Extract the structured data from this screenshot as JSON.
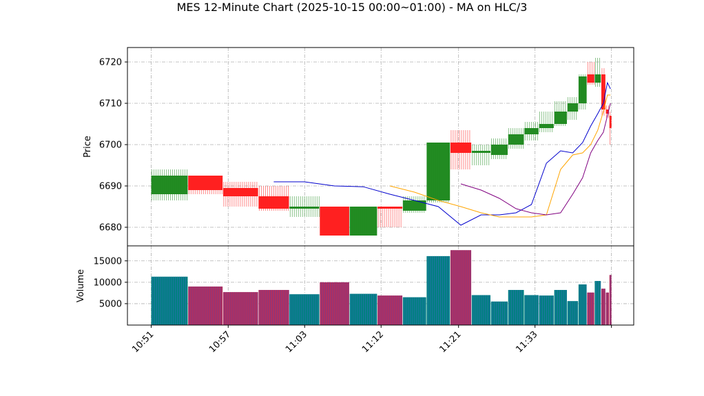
{
  "chart_data": {
    "type": "candlestick",
    "title": "MES 12-Minute Chart (2025-10-15 00:00~01:00) - MA on HLC/3",
    "price_panel": {
      "ylabel": "Price",
      "ylim": [
        6675.5,
        6723.5
      ],
      "yticks": [
        6680,
        6690,
        6700,
        6710,
        6720
      ],
      "grid": true
    },
    "volume_panel": {
      "ylabel": "Volume",
      "ylim": [
        0,
        18500
      ],
      "yticks": [
        5000,
        10000,
        15000
      ],
      "grid": true
    },
    "xlabels": [
      "10:51",
      "10:57",
      "11:03",
      "11:12",
      "11:21",
      "11:33"
    ],
    "colors": {
      "up": "#228b22",
      "down": "#ff2020",
      "ma_fast": "#0000cd",
      "ma_mid": "#ffa500",
      "ma_slow": "#800080",
      "volume_up": "#008080",
      "volume_down": "#b03060"
    },
    "candles": [
      {
        "open": 6688.0,
        "high": 6694.0,
        "low": 6686.5,
        "close": 6692.5,
        "volume": 11300
      },
      {
        "open": 6692.5,
        "high": 6692.5,
        "low": 6688.0,
        "close": 6689.0,
        "volume": 9000
      },
      {
        "open": 6689.5,
        "high": 6691.0,
        "low": 6685.0,
        "close": 6687.5,
        "volume": 7700
      },
      {
        "open": 6687.5,
        "high": 6690.0,
        "low": 6684.0,
        "close": 6684.5,
        "volume": 8200
      },
      {
        "open": 6684.5,
        "high": 6687.5,
        "low": 6682.5,
        "close": 6685.0,
        "volume": 7200
      },
      {
        "open": 6685.0,
        "high": 6685.0,
        "low": 6678.0,
        "close": 6678.0,
        "volume": 10000
      },
      {
        "open": 6678.0,
        "high": 6685.0,
        "low": 6678.0,
        "close": 6685.0,
        "volume": 7300
      },
      {
        "open": 6685.0,
        "high": 6685.0,
        "low": 6680.0,
        "close": 6684.5,
        "volume": 6900
      },
      {
        "open": 6684.0,
        "high": 6687.5,
        "low": 6683.5,
        "close": 6686.5,
        "volume": 6500
      },
      {
        "open": 6686.5,
        "high": 6700.5,
        "low": 6686.0,
        "close": 6700.5,
        "volume": 16100
      },
      {
        "open": 6700.5,
        "high": 6703.5,
        "low": 6694.0,
        "close": 6698.0,
        "volume": 17500
      },
      {
        "open": 6698.0,
        "high": 6700.0,
        "low": 6695.0,
        "close": 6698.5,
        "volume": 7000
      },
      {
        "open": 6697.5,
        "high": 6701.5,
        "low": 6696.5,
        "close": 6700.0,
        "volume": 5500
      },
      {
        "open": 6700.0,
        "high": 6704.0,
        "low": 6699.0,
        "close": 6702.5,
        "volume": 8200
      },
      {
        "open": 6702.5,
        "high": 6705.5,
        "low": 6701.0,
        "close": 6704.0,
        "volume": 7000
      },
      {
        "open": 6704.0,
        "high": 6708.0,
        "low": 6703.0,
        "close": 6705.0,
        "volume": 6900
      },
      {
        "open": 6705.0,
        "high": 6710.5,
        "low": 6704.5,
        "close": 6708.0,
        "volume": 8200
      },
      {
        "open": 6708.0,
        "high": 6711.5,
        "low": 6706.0,
        "close": 6710.0,
        "volume": 5600
      },
      {
        "open": 6710.0,
        "high": 6717.0,
        "low": 6708.5,
        "close": 6716.5,
        "volume": 9500
      },
      {
        "open": 6717.0,
        "high": 6720.0,
        "low": 6714.5,
        "close": 6715.0,
        "volume": 7600
      },
      {
        "open": 6715.0,
        "high": 6721.0,
        "low": 6714.0,
        "close": 6717.0,
        "volume": 10300
      },
      {
        "open": 6717.0,
        "high": 6718.5,
        "low": 6707.0,
        "close": 6708.5,
        "volume": 8500
      },
      {
        "open": 6708.5,
        "high": 6709.5,
        "low": 6706.5,
        "close": 6707.5,
        "volume": 7600
      },
      {
        "open": 6707.0,
        "high": 6708.0,
        "low": 6700.0,
        "close": 6704.0,
        "volume": 11700
      }
    ],
    "ma_series": [
      {
        "color_key": "ma_fast",
        "values": [
          6691.0,
          6691.0,
          6690.0,
          6689.8,
          6688.0,
          6686.5,
          6685.0,
          6680.5,
          6683.0,
          6683.0,
          6683.5,
          6685.5,
          6695.5,
          6698.5,
          6698.0,
          6700.5,
          6704.5,
          6707.5,
          6710.0,
          6715.0,
          6713.5
        ]
      },
      {
        "color_key": "ma_mid",
        "values": [
          6690.0,
          6688.5,
          6686.5,
          6685.0,
          6683.5,
          6682.5,
          6682.5,
          6682.5,
          6683.0,
          6694.0,
          6697.5,
          6698.0,
          6700.0,
          6703.5,
          6708.0,
          6712.0,
          6712.0
        ]
      },
      {
        "color_key": "ma_slow",
        "values": [
          6690.5,
          6689.0,
          6687.0,
          6684.5,
          6683.5,
          6683.0,
          6683.5,
          6688.0,
          6692.0,
          6698.0,
          6701.0,
          6703.0,
          6707.0,
          6710.0
        ]
      }
    ]
  }
}
